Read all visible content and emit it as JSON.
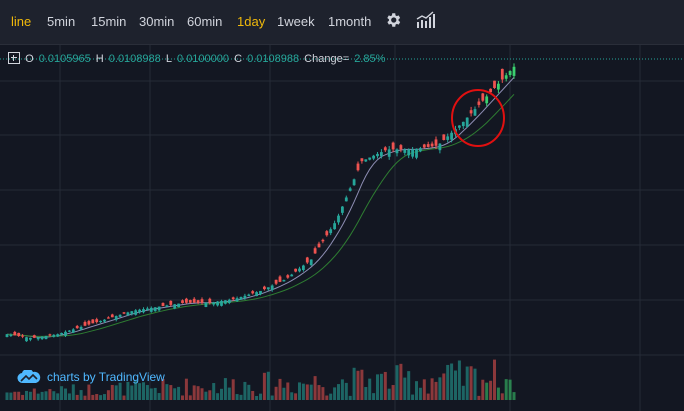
{
  "toolbar": {
    "chart_type": "line",
    "timeframes": [
      "5min",
      "15min",
      "30min",
      "60min",
      "1day",
      "1week",
      "1month"
    ],
    "active_timeframe": "1day",
    "settings_icon": "gear-icon",
    "indicators_icon": "indicators-icon"
  },
  "legend": {
    "o_label": "O",
    "o_value": "0.0105965",
    "h_label": "H",
    "h_value": "0.0108988",
    "l_label": "L",
    "l_value": "0.0100000",
    "c_label": "C",
    "c_value": "0.0108988",
    "change_label": "Change=",
    "change_value": "2.85%"
  },
  "branding": {
    "text": "charts by TradingView",
    "icon": "cloud-icon"
  },
  "annotation": {
    "shape": "red-circle",
    "color": "#e01010"
  },
  "colors": {
    "up": "#26a69a",
    "up_bright": "#3bd16f",
    "down": "#ef5350",
    "ma_fast": "#8e8eb4",
    "ma_slow": "#2e7d32",
    "active": "#f0b90b",
    "background": "#131722"
  },
  "chart_data": {
    "type": "candlestick",
    "last_close": 0.0108988,
    "closes_approx": [
      0.0041,
      0.004,
      0.0041,
      0.0043,
      0.0045,
      0.0047,
      0.0048,
      0.0049,
      0.0049,
      0.005,
      0.0052,
      0.0055,
      0.006,
      0.007,
      0.0085,
      0.0088,
      0.0088,
      0.0089,
      0.0095,
      0.0102,
      0.0109
    ],
    "grid": true,
    "moving_averages": 2,
    "volume_pane": true
  }
}
